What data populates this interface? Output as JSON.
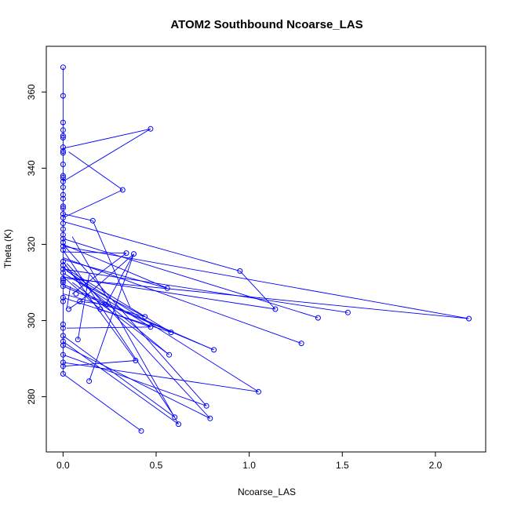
{
  "chart_data": {
    "type": "scatter",
    "title": "ATOM2 Southbound Ncoarse_LAS",
    "xlabel": "Ncoarse_LAS",
    "ylabel": "Theta (K)",
    "xlim": [
      -0.09,
      2.27
    ],
    "ylim": [
      265.5,
      372.0
    ],
    "x_ticks": [
      0.0,
      0.5,
      1.0,
      1.5,
      2.0
    ],
    "x_tick_labels": [
      "0.0",
      "0.5",
      "1.0",
      "1.5",
      "2.0"
    ],
    "y_ticks": [
      280,
      300,
      320,
      340,
      360
    ],
    "y_tick_labels": [
      "280",
      "300",
      "320",
      "340",
      "360"
    ],
    "grid": false,
    "legend": "none",
    "series_color": "#0000ff",
    "markers": "open-circle",
    "connected": true,
    "points": [
      [
        0.0,
        366.5
      ],
      [
        0.0,
        359.0
      ],
      [
        0.0,
        352.0
      ],
      [
        0.0,
        350.0
      ],
      [
        0.0,
        348.5
      ],
      [
        0.0,
        348.0
      ],
      [
        0.0,
        345.5
      ],
      [
        0.0,
        344.5
      ],
      [
        0.47,
        350.3
      ],
      [
        0.0,
        344.0
      ],
      [
        0.0,
        341.0
      ],
      [
        0.0,
        338.0
      ],
      [
        0.32,
        334.3
      ],
      [
        0.0,
        337.5
      ],
      [
        0.0,
        336.5
      ],
      [
        0.0,
        335.0
      ],
      [
        0.0,
        333.0
      ],
      [
        0.0,
        332.0
      ],
      [
        0.0,
        330.0
      ],
      [
        0.0,
        329.5
      ],
      [
        0.0,
        328.0
      ],
      [
        0.16,
        326.2
      ],
      [
        0.0,
        327.0
      ],
      [
        0.0,
        325.5
      ],
      [
        0.0,
        324.0
      ],
      [
        0.0,
        322.5
      ],
      [
        0.0,
        321.5
      ],
      [
        0.0,
        320.5
      ],
      [
        0.0,
        319.5
      ],
      [
        0.34,
        317.7
      ],
      [
        0.0,
        318.5
      ],
      [
        0.38,
        317.5
      ],
      [
        0.0,
        315.5
      ],
      [
        0.95,
        313.0
      ],
      [
        0.0,
        314.5
      ],
      [
        0.0,
        313.5
      ],
      [
        0.0,
        312.5
      ],
      [
        0.0,
        311.0
      ],
      [
        1.28,
        294.0
      ],
      [
        0.0,
        310.5
      ],
      [
        0.0,
        310.0
      ],
      [
        0.56,
        308.5
      ],
      [
        0.0,
        309.0
      ],
      [
        0.07,
        307.0
      ],
      [
        0.0,
        306.0
      ],
      [
        0.0,
        305.0
      ],
      [
        0.09,
        305.0
      ],
      [
        0.23,
        304.2
      ],
      [
        1.14,
        303.0
      ],
      [
        1.53,
        302.1
      ],
      [
        0.2,
        303.0
      ],
      [
        2.18,
        300.5
      ],
      [
        0.03,
        303.0
      ],
      [
        1.37,
        300.7
      ],
      [
        0.44,
        301.0
      ],
      [
        0.0,
        299.0
      ],
      [
        0.47,
        298.3
      ],
      [
        0.0,
        298.0
      ],
      [
        0.58,
        296.9
      ],
      [
        0.0,
        296.0
      ],
      [
        0.08,
        295.0
      ],
      [
        0.81,
        292.3
      ],
      [
        0.0,
        294.5
      ],
      [
        0.0,
        293.5
      ],
      [
        0.57,
        291.0
      ],
      [
        0.0,
        291.0
      ],
      [
        0.0,
        289.0
      ],
      [
        0.39,
        289.5
      ],
      [
        0.0,
        288.0
      ],
      [
        1.05,
        281.3
      ],
      [
        0.0,
        286.0
      ],
      [
        0.14,
        284.1
      ],
      [
        0.77,
        277.6
      ],
      [
        0.6,
        274.6
      ],
      [
        0.79,
        274.3
      ],
      [
        0.62,
        272.8
      ],
      [
        0.42,
        271.0
      ]
    ],
    "segments": [
      [
        0.0,
        345.2,
        0.47,
        350.3
      ],
      [
        0.03,
        344.3,
        0.32,
        334.3
      ],
      [
        0.0,
        336.5,
        0.47,
        350.3
      ],
      [
        0.0,
        327.0,
        0.32,
        334.3
      ],
      [
        0.0,
        328.0,
        0.16,
        326.2
      ],
      [
        0.16,
        326.2,
        0.36,
        303.5
      ],
      [
        0.0,
        326.0,
        0.95,
        313.0
      ],
      [
        0.95,
        313.0,
        1.14,
        303.0
      ],
      [
        0.0,
        321.5,
        1.37,
        300.7
      ],
      [
        0.0,
        319.5,
        2.18,
        300.5
      ],
      [
        0.0,
        318.0,
        0.34,
        317.7
      ],
      [
        0.34,
        317.7,
        0.05,
        307.0
      ],
      [
        0.38,
        317.5,
        0.09,
        305.0
      ],
      [
        0.38,
        317.5,
        0.23,
        304.2
      ],
      [
        0.0,
        320.0,
        0.56,
        308.5
      ],
      [
        0.56,
        308.5,
        0.0,
        316.0
      ],
      [
        0.0,
        316.5,
        1.28,
        294.0
      ],
      [
        0.0,
        313.5,
        1.53,
        302.1
      ],
      [
        0.02,
        311.0,
        2.18,
        300.5
      ],
      [
        0.0,
        311.5,
        1.14,
        303.0
      ],
      [
        0.07,
        310.5,
        0.44,
        301.0
      ],
      [
        0.0,
        312.5,
        0.47,
        298.3
      ],
      [
        0.02,
        313.5,
        0.58,
        296.9
      ],
      [
        0.0,
        309.5,
        0.81,
        292.3
      ],
      [
        0.0,
        314.0,
        0.57,
        291.0
      ],
      [
        0.0,
        315.5,
        0.39,
        289.5
      ],
      [
        0.02,
        313.0,
        1.05,
        281.3
      ],
      [
        0.0,
        320.0,
        0.77,
        277.6
      ],
      [
        0.0,
        318.5,
        0.6,
        274.6
      ],
      [
        0.02,
        315.0,
        0.79,
        274.3
      ],
      [
        0.05,
        322.0,
        0.62,
        272.8
      ],
      [
        0.44,
        301.0,
        0.0,
        307.0
      ],
      [
        0.47,
        298.3,
        0.2,
        303.0
      ],
      [
        0.2,
        303.0,
        0.0,
        311.5
      ],
      [
        0.23,
        304.2,
        0.09,
        305.0
      ],
      [
        0.09,
        305.0,
        0.03,
        303.0
      ],
      [
        0.08,
        295.0,
        0.14,
        312.0
      ],
      [
        0.14,
        284.1,
        0.38,
        317.5
      ],
      [
        0.0,
        296.0,
        0.6,
        274.6
      ],
      [
        0.0,
        294.5,
        0.62,
        272.8
      ],
      [
        0.0,
        293.5,
        0.79,
        274.3
      ],
      [
        0.0,
        291.0,
        0.77,
        277.6
      ],
      [
        0.0,
        289.0,
        1.05,
        281.3
      ],
      [
        0.0,
        288.0,
        0.39,
        289.5
      ],
      [
        0.0,
        286.0,
        0.42,
        271.0
      ],
      [
        0.02,
        298.0,
        0.47,
        298.3
      ],
      [
        0.58,
        296.9,
        0.0,
        306.0
      ],
      [
        0.57,
        291.0,
        0.05,
        310.0
      ],
      [
        0.81,
        292.3,
        0.0,
        309.0
      ],
      [
        0.02,
        303.0,
        0.04,
        309.0
      ]
    ]
  }
}
